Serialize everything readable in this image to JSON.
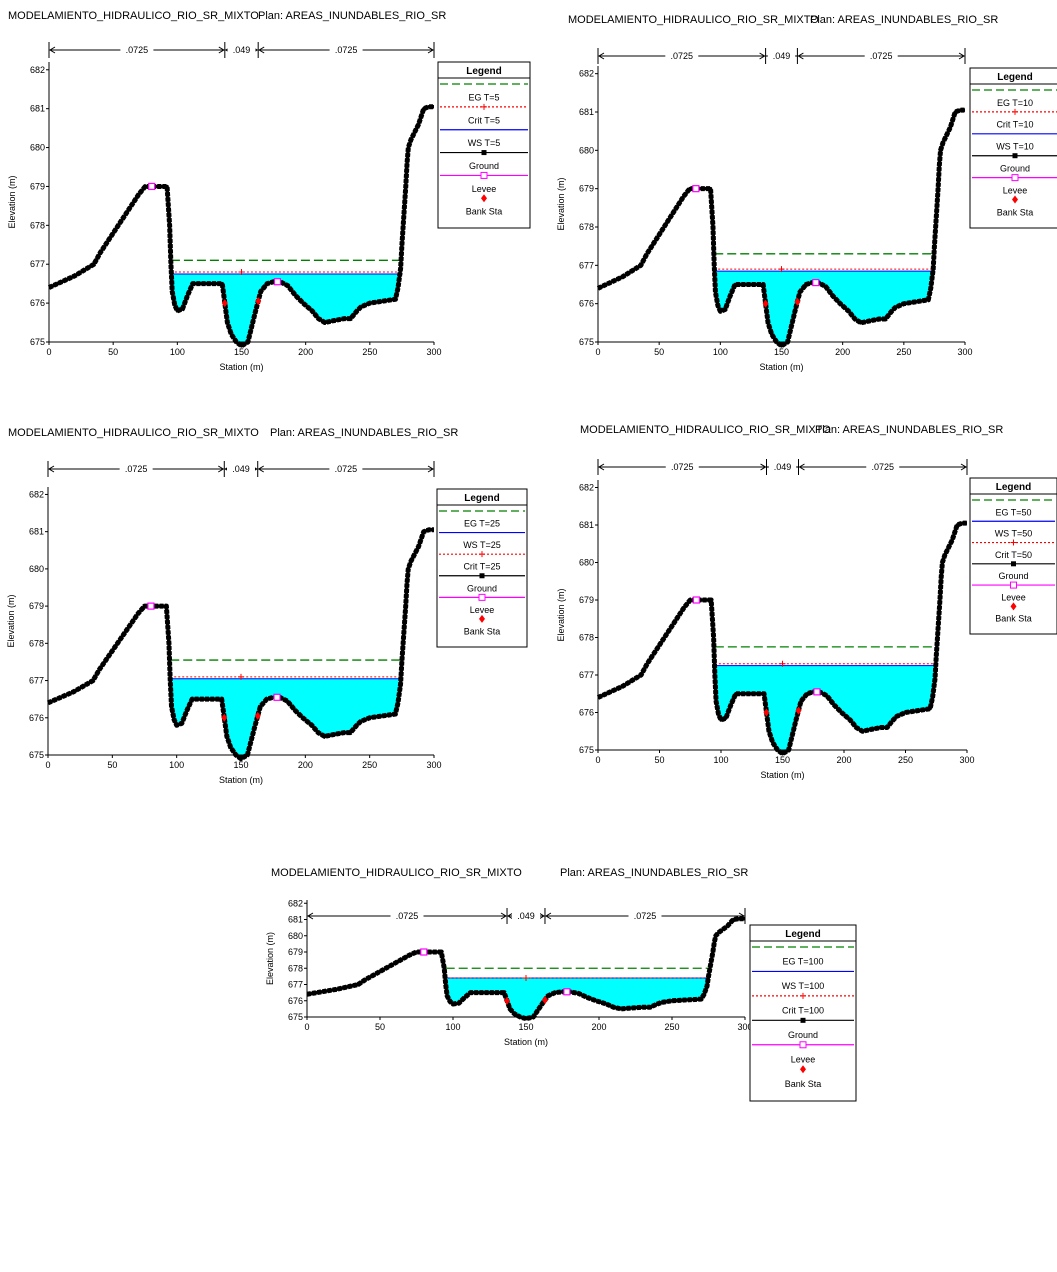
{
  "colors": {
    "water": "#00ffff",
    "ground": "#000000",
    "eg": "#008000",
    "ws": "#0000ff",
    "crit": "#ff0000",
    "levee": "#ff00ff",
    "bank": "#ff0000"
  },
  "ground_profile": [
    [
      0,
      676.4
    ],
    [
      10,
      676.55
    ],
    [
      20,
      676.7
    ],
    [
      30,
      676.9
    ],
    [
      35,
      677.0
    ],
    [
      40,
      677.3
    ],
    [
      50,
      677.8
    ],
    [
      60,
      678.3
    ],
    [
      70,
      678.8
    ],
    [
      75,
      679.0
    ],
    [
      80,
      679.0
    ],
    [
      85,
      679.0
    ],
    [
      92,
      679.0
    ],
    [
      94,
      678.0
    ],
    [
      95,
      677.0
    ],
    [
      96,
      676.3
    ],
    [
      98,
      675.95
    ],
    [
      100,
      675.8
    ],
    [
      104,
      675.85
    ],
    [
      108,
      676.2
    ],
    [
      112,
      676.5
    ],
    [
      120,
      676.5
    ],
    [
      135,
      676.5
    ],
    [
      137,
      676.0
    ],
    [
      139,
      675.5
    ],
    [
      142,
      675.2
    ],
    [
      146,
      675.0
    ],
    [
      150,
      674.9
    ],
    [
      155,
      675.0
    ],
    [
      158,
      675.4
    ],
    [
      161,
      675.8
    ],
    [
      165,
      676.3
    ],
    [
      170,
      676.5
    ],
    [
      175,
      676.55
    ],
    [
      180,
      676.55
    ],
    [
      186,
      676.45
    ],
    [
      192,
      676.2
    ],
    [
      198,
      676.0
    ],
    [
      205,
      675.8
    ],
    [
      210,
      675.6
    ],
    [
      215,
      675.5
    ],
    [
      222,
      675.55
    ],
    [
      230,
      675.6
    ],
    [
      235,
      675.6
    ],
    [
      240,
      675.8
    ],
    [
      243,
      675.9
    ],
    [
      250,
      676.0
    ],
    [
      260,
      676.05
    ],
    [
      270,
      676.1
    ],
    [
      272,
      676.4
    ],
    [
      274,
      676.9
    ],
    [
      275,
      677.5
    ],
    [
      276,
      678.0
    ],
    [
      278,
      679.0
    ],
    [
      279,
      679.6
    ],
    [
      280,
      680.0
    ],
    [
      282,
      680.2
    ],
    [
      285,
      680.4
    ],
    [
      288,
      680.6
    ],
    [
      290,
      680.8
    ],
    [
      292,
      681.0
    ],
    [
      296,
      681.05
    ],
    [
      300,
      681.05
    ]
  ],
  "panels": [
    {
      "header": {
        "project": "MODELAMIENTO_HIDRAULICO_RIO_SR_MIXTO",
        "plan": "Plan: AREAS_INUNDABLES_RIO_SR"
      },
      "manning": [
        ".0725",
        ".049",
        ".0725"
      ],
      "ylabel": "Elevation (m)",
      "xlabel": "Station (m)",
      "legend": {
        "title": "Legend",
        "items": [
          "EG T=5",
          "Crit T=5",
          "WS T=5",
          "Ground",
          "Levee",
          "Bank Sta"
        ]
      }
    },
    {
      "header": {
        "project": "MODELAMIENTO_HIDRAULICO_RIO_SR_MIXTO",
        "plan": "Plan: AREAS_INUNDABLES_RIO_SR"
      },
      "manning": [
        ".0725",
        ".049",
        ".0725"
      ],
      "ylabel": "Elevation (m)",
      "xlabel": "Station (m)",
      "legend": {
        "title": "Legend",
        "items": [
          "EG T=10",
          "Crit T=10",
          "WS T=10",
          "Ground",
          "Levee",
          "Bank Sta"
        ]
      }
    },
    {
      "header": {
        "project": "MODELAMIENTO_HIDRAULICO_RIO_SR_MIXTO",
        "plan": "Plan: AREAS_INUNDABLES_RIO_SR"
      },
      "manning": [
        ".0725",
        ".049",
        ".0725"
      ],
      "ylabel": "Elevation (m)",
      "xlabel": "Station (m)",
      "legend": {
        "title": "Legend",
        "items": [
          "EG T=25",
          "WS T=25",
          "Crit T=25",
          "Ground",
          "Levee",
          "Bank Sta"
        ]
      }
    },
    {
      "header": {
        "project": "MODELAMIENTO_HIDRAULICO_RIO_SR_MIXTO",
        "plan": "Plan: AREAS_INUNDABLES_RIO_SR"
      },
      "manning": [
        ".0725",
        ".049",
        ".0725"
      ],
      "ylabel": "Elevation (m)",
      "xlabel": "Station (m)",
      "legend": {
        "title": "Legend",
        "items": [
          "EG T=50",
          "WS T=50",
          "Crit T=50",
          "Ground",
          "Levee",
          "Bank Sta"
        ]
      }
    },
    {
      "header": {
        "project": "MODELAMIENTO_HIDRAULICO_RIO_SR_MIXTO",
        "plan": "Plan: AREAS_INUNDABLES_RIO_SR"
      },
      "manning": [
        ".0725",
        ".049",
        ".0725"
      ],
      "ylabel": "Elevation (m)",
      "xlabel": "Station (m)",
      "legend": {
        "title": "Legend",
        "items": [
          "EG T=100",
          "WS T=100",
          "Crit T=100",
          "Ground",
          "Levee",
          "Bank Sta"
        ]
      }
    }
  ],
  "chart_data": [
    {
      "type": "area",
      "xlabel": "Station (m)",
      "ylabel": "Elevation (m)",
      "xlim": [
        0,
        300
      ],
      "ylim": [
        675,
        682.2
      ],
      "x_ticks": [
        0,
        50,
        100,
        150,
        200,
        250,
        300
      ],
      "y_ticks": [
        675,
        676,
        677,
        678,
        679,
        680,
        681,
        682
      ],
      "manning_breaks": [
        0,
        137,
        163,
        300
      ],
      "bank_stations": [
        137,
        163
      ],
      "levee": [
        [
          80,
          679.0
        ],
        [
          178,
          676.55
        ]
      ],
      "eg": {
        "name": "EG T=5",
        "elevation": 677.1,
        "x_range": [
          95,
          275
        ]
      },
      "ws": {
        "name": "WS T=5",
        "elevation": 676.75
      },
      "crit": {
        "name": "Crit T=5",
        "elevation": 676.8,
        "x": 150
      }
    },
    {
      "type": "area",
      "xlabel": "Station (m)",
      "ylabel": "Elevation (m)",
      "xlim": [
        0,
        300
      ],
      "ylim": [
        675,
        682.2
      ],
      "x_ticks": [
        0,
        50,
        100,
        150,
        200,
        250,
        300
      ],
      "y_ticks": [
        675,
        676,
        677,
        678,
        679,
        680,
        681,
        682
      ],
      "manning_breaks": [
        0,
        137,
        163,
        300
      ],
      "bank_stations": [
        137,
        163
      ],
      "levee": [
        [
          80,
          679.0
        ],
        [
          178,
          676.55
        ]
      ],
      "eg": {
        "name": "EG T=10",
        "elevation": 677.3,
        "x_range": [
          95,
          275
        ]
      },
      "ws": {
        "name": "WS T=10",
        "elevation": 676.85
      },
      "crit": {
        "name": "Crit T=10",
        "elevation": 676.9,
        "x": 150
      }
    },
    {
      "type": "area",
      "xlabel": "Station (m)",
      "ylabel": "Elevation (m)",
      "xlim": [
        0,
        300
      ],
      "ylim": [
        675,
        682.2
      ],
      "x_ticks": [
        0,
        50,
        100,
        150,
        200,
        250,
        300
      ],
      "y_ticks": [
        675,
        676,
        677,
        678,
        679,
        680,
        681,
        682
      ],
      "manning_breaks": [
        0,
        137,
        163,
        300
      ],
      "bank_stations": [
        137,
        163
      ],
      "levee": [
        [
          80,
          679.0
        ],
        [
          178,
          676.55
        ]
      ],
      "eg": {
        "name": "EG T=25",
        "elevation": 677.55,
        "x_range": [
          95,
          275
        ]
      },
      "ws": {
        "name": "WS T=25",
        "elevation": 677.05
      },
      "crit": {
        "name": "Crit T=25",
        "elevation": 677.1,
        "x": 150
      }
    },
    {
      "type": "area",
      "xlabel": "Station (m)",
      "ylabel": "Elevation (m)",
      "xlim": [
        0,
        300
      ],
      "ylim": [
        675,
        682.2
      ],
      "x_ticks": [
        0,
        50,
        100,
        150,
        200,
        250,
        300
      ],
      "y_ticks": [
        675,
        676,
        677,
        678,
        679,
        680,
        681,
        682
      ],
      "manning_breaks": [
        0,
        137,
        163,
        300
      ],
      "bank_stations": [
        137,
        163
      ],
      "levee": [
        [
          80,
          679.0
        ],
        [
          178,
          676.55
        ]
      ],
      "eg": {
        "name": "EG T=50",
        "elevation": 677.75,
        "x_range": [
          95,
          275
        ]
      },
      "ws": {
        "name": "WS T=50",
        "elevation": 677.25
      },
      "crit": {
        "name": "Crit T=50",
        "elevation": 677.3,
        "x": 150
      }
    },
    {
      "type": "area",
      "xlabel": "Station (m)",
      "ylabel": "Elevation (m)",
      "xlim": [
        0,
        300
      ],
      "ylim": [
        675,
        682.2
      ],
      "x_ticks": [
        0,
        50,
        100,
        150,
        200,
        250,
        300
      ],
      "y_ticks": [
        675,
        676,
        677,
        678,
        679,
        680,
        681,
        682
      ],
      "manning_breaks": [
        0,
        137,
        163,
        300
      ],
      "bank_stations": [
        137,
        163
      ],
      "levee": [
        [
          80,
          679.0
        ],
        [
          178,
          676.55
        ]
      ],
      "eg": {
        "name": "EG T=100",
        "elevation": 678.0,
        "x_range": [
          95,
          275
        ]
      },
      "ws": {
        "name": "WS T=100",
        "elevation": 677.4
      },
      "crit": {
        "name": "Crit T=100",
        "elevation": 677.4,
        "x": 150
      }
    }
  ]
}
